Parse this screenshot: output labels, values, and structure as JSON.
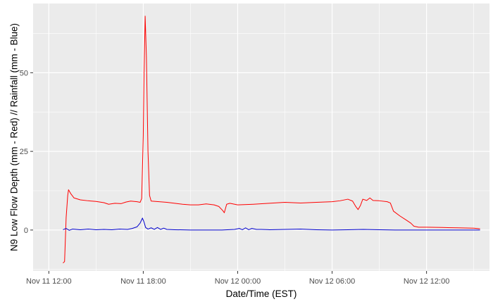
{
  "chart_data": {
    "type": "line",
    "title": "",
    "xlabel": "Date/Time (EST)",
    "ylabel": "N9 Low Flow Depth (mm - Red) // Rainfall (mm - Blue)",
    "x_unit": "hours",
    "xlim": [
      -1,
      28
    ],
    "ylim": [
      -13,
      72
    ],
    "x_ticks": [
      {
        "value": 0,
        "label": "Nov 11 12:00"
      },
      {
        "value": 6,
        "label": "Nov 11 18:00"
      },
      {
        "value": 12,
        "label": "Nov 12 00:00"
      },
      {
        "value": 18,
        "label": "Nov 12 06:00"
      },
      {
        "value": 24,
        "label": "Nov 12 12:00"
      }
    ],
    "y_ticks": [
      {
        "value": 0,
        "label": "0"
      },
      {
        "value": 25,
        "label": "25"
      },
      {
        "value": 50,
        "label": "50"
      }
    ],
    "grid": true,
    "legend": "none",
    "series": [
      {
        "color": "#ff0000",
        "points": [
          [
            0.9,
            -10.5
          ],
          [
            1.0,
            -10
          ],
          [
            1.1,
            4
          ],
          [
            1.2,
            11
          ],
          [
            1.25,
            12.8
          ],
          [
            1.4,
            11.5
          ],
          [
            1.6,
            10.2
          ],
          [
            2.0,
            9.6
          ],
          [
            2.5,
            9.3
          ],
          [
            3.0,
            9.1
          ],
          [
            3.5,
            8.7
          ],
          [
            3.8,
            8.2
          ],
          [
            4.2,
            8.5
          ],
          [
            4.6,
            8.4
          ],
          [
            4.9,
            8.9
          ],
          [
            5.2,
            9.2
          ],
          [
            5.6,
            9.0
          ],
          [
            5.8,
            8.8
          ],
          [
            5.9,
            10
          ],
          [
            6.0,
            30
          ],
          [
            6.05,
            50
          ],
          [
            6.12,
            68
          ],
          [
            6.2,
            55
          ],
          [
            6.3,
            25
          ],
          [
            6.4,
            11
          ],
          [
            6.5,
            9.2
          ],
          [
            7.0,
            9.0
          ],
          [
            7.5,
            8.8
          ],
          [
            8.0,
            8.5
          ],
          [
            8.5,
            8.2
          ],
          [
            9.0,
            8.0
          ],
          [
            9.5,
            8.0
          ],
          [
            10.0,
            8.3
          ],
          [
            10.5,
            8.0
          ],
          [
            10.8,
            7.5
          ],
          [
            11.05,
            6.2
          ],
          [
            11.15,
            5.5
          ],
          [
            11.3,
            8.2
          ],
          [
            11.5,
            8.5
          ],
          [
            12.0,
            8.0
          ],
          [
            13.0,
            8.2
          ],
          [
            14.0,
            8.5
          ],
          [
            15.0,
            8.8
          ],
          [
            16.0,
            8.6
          ],
          [
            17.0,
            8.8
          ],
          [
            18.0,
            9.0
          ],
          [
            18.5,
            9.3
          ],
          [
            19.0,
            9.8
          ],
          [
            19.3,
            9.2
          ],
          [
            19.5,
            7.5
          ],
          [
            19.65,
            6.5
          ],
          [
            19.8,
            7.8
          ],
          [
            19.95,
            9.8
          ],
          [
            20.2,
            9.4
          ],
          [
            20.4,
            10.2
          ],
          [
            20.6,
            9.4
          ],
          [
            21.0,
            9.3
          ],
          [
            21.5,
            9.0
          ],
          [
            21.7,
            8.6
          ],
          [
            21.9,
            6.0
          ],
          [
            22.3,
            4.5
          ],
          [
            22.7,
            3.2
          ],
          [
            23.0,
            2.2
          ],
          [
            23.2,
            1.2
          ],
          [
            23.5,
            0.9
          ],
          [
            24.0,
            0.9
          ],
          [
            25.0,
            0.8
          ],
          [
            26.0,
            0.7
          ],
          [
            27.0,
            0.6
          ],
          [
            27.4,
            0.4
          ]
        ]
      },
      {
        "color": "#0000cd",
        "points": [
          [
            0.9,
            0.1
          ],
          [
            1.1,
            0.5
          ],
          [
            1.3,
            -0.1
          ],
          [
            1.5,
            0.3
          ],
          [
            2.0,
            0.1
          ],
          [
            2.5,
            0.3
          ],
          [
            3.0,
            0.1
          ],
          [
            3.5,
            0.2
          ],
          [
            4.0,
            0.1
          ],
          [
            4.5,
            0.3
          ],
          [
            5.0,
            0.2
          ],
          [
            5.3,
            0.5
          ],
          [
            5.6,
            1.0
          ],
          [
            5.8,
            2.2
          ],
          [
            5.95,
            3.8
          ],
          [
            6.05,
            2.5
          ],
          [
            6.15,
            0.8
          ],
          [
            6.3,
            0.3
          ],
          [
            6.5,
            0.7
          ],
          [
            6.7,
            0.2
          ],
          [
            6.9,
            0.8
          ],
          [
            7.1,
            0.2
          ],
          [
            7.3,
            0.6
          ],
          [
            7.5,
            0.2
          ],
          [
            8.0,
            0.1
          ],
          [
            9.0,
            0.0
          ],
          [
            10.0,
            0.0
          ],
          [
            11.0,
            0.0
          ],
          [
            11.8,
            0.2
          ],
          [
            12.1,
            0.5
          ],
          [
            12.3,
            0.1
          ],
          [
            12.5,
            0.7
          ],
          [
            12.7,
            0.1
          ],
          [
            12.9,
            0.5
          ],
          [
            13.2,
            0.2
          ],
          [
            13.5,
            0.2
          ],
          [
            14.0,
            0.1
          ],
          [
            15.0,
            0.2
          ],
          [
            16.0,
            0.3
          ],
          [
            17.0,
            0.1
          ],
          [
            18.0,
            0.0
          ],
          [
            19.0,
            0.1
          ],
          [
            20.0,
            0.2
          ],
          [
            21.0,
            0.1
          ],
          [
            22.0,
            0.0
          ],
          [
            23.0,
            0.0
          ],
          [
            24.0,
            0.0
          ],
          [
            25.0,
            0.0
          ],
          [
            26.0,
            0.0
          ],
          [
            27.0,
            0.0
          ],
          [
            27.4,
            0.0
          ]
        ]
      }
    ]
  }
}
